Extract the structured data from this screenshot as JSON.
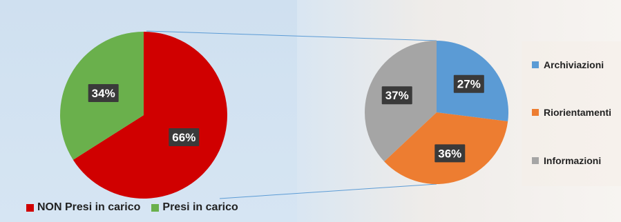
{
  "chart_data": [
    {
      "type": "pie",
      "slices": [
        {
          "label": "NON Presi in carico",
          "value": 66,
          "value_label": "66%",
          "color": "#d00000"
        },
        {
          "label": "Presi in carico",
          "value": 34,
          "value_label": "34%",
          "color": "#6ab04c"
        }
      ],
      "legend_placement": "bottom"
    },
    {
      "type": "pie",
      "slices": [
        {
          "label": "Archiviazioni",
          "value": 27,
          "value_label": "27%",
          "color": "#5b9bd5"
        },
        {
          "label": "Riorientamenti",
          "value": 36,
          "value_label": "36%",
          "color": "#ed7d31"
        },
        {
          "label": "Informazioni",
          "value": 37,
          "value_label": "37%",
          "color": "#a5a5a5"
        }
      ],
      "legend_placement": "right"
    }
  ],
  "label_box_color": "#3a3a3a",
  "connector_color": "#5b9bd5"
}
